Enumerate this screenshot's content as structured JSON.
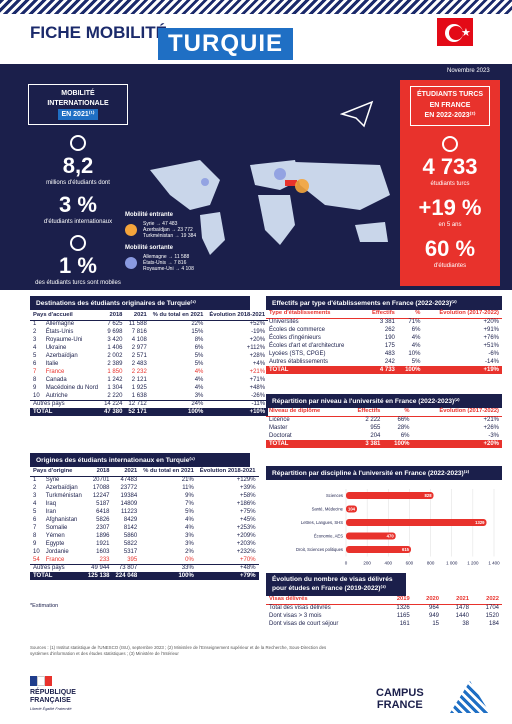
{
  "header": {
    "title": "FICHE MOBILITÉ",
    "country": "TURQUIE",
    "date": "Novembre 2023"
  },
  "left": {
    "box_l1": "MOBILITÉ",
    "box_l2": "INTERNATIONALE",
    "box_l3": "EN 2021⁽¹⁾",
    "n1": "8,2",
    "t1": "millions d'étudiants dont",
    "n2": "3 %",
    "t2": "d'étudiants internationaux",
    "n3": "1 %",
    "t3": "des étudiants turcs sont mobiles"
  },
  "right": {
    "box_l1": "ÉTUDIANTS TURCS",
    "box_l2": "EN FRANCE",
    "box_l3": "EN 2022-2023⁽²⁾",
    "n1": "4 733",
    "t1": "étudiants turcs",
    "n2": "+19 %",
    "t2": "en 5 ans",
    "n3": "60 %",
    "t3": "d'étudiantes"
  },
  "mobility": {
    "in_title": "Mobilité entrante",
    "in": [
      "Syrie → 47 483",
      "Azerbaïdjan → 23 772",
      "Turkménistan → 19 384"
    ],
    "out_title": "Mobilité sortante",
    "out": [
      "Allemagne → 11 588",
      "États-Unis → 7 816",
      "Royaume-Uni → 4 108"
    ]
  },
  "dest": {
    "title": "Destinations des étudiants originaires de Turquie⁽¹⁾",
    "headers": [
      "Pays d'accueil",
      "2018",
      "2021",
      "% du total en 2021",
      "Évolution 2018-2021"
    ],
    "rows": [
      [
        "1",
        "Allemagne",
        "7 625",
        "11 588",
        "22%",
        "+52%"
      ],
      [
        "2",
        "États-Unis",
        "9 698",
        "7 816",
        "15%",
        "-19%"
      ],
      [
        "3",
        "Royaume-Uni",
        "3 420",
        "4 108",
        "8%",
        "+20%"
      ],
      [
        "4",
        "Ukraine",
        "1 406",
        "2 977",
        "6%",
        "+112%"
      ],
      [
        "5",
        "Azerbaïdjan",
        "2 002",
        "2 571",
        "5%",
        "+28%"
      ],
      [
        "6",
        "Italie",
        "2 389",
        "2 483",
        "5%",
        "+4%"
      ],
      [
        "7",
        "France",
        "1 850",
        "2 232",
        "4%",
        "+21%"
      ],
      [
        "8",
        "Canada",
        "1 242",
        "2 121",
        "4%",
        "+71%"
      ],
      [
        "9",
        "Macédoine du Nord",
        "1 304",
        "1 925",
        "4%",
        "+48%"
      ],
      [
        "10",
        "Autriche",
        "2 220",
        "1 638",
        "3%",
        "-26%"
      ]
    ],
    "other": [
      "Autres pays",
      "14 224",
      "12 712",
      "24%",
      "-11%"
    ],
    "total": [
      "TOTAL",
      "47 380",
      "52 171",
      "100%",
      "+10%"
    ]
  },
  "orig": {
    "title": "Origines des étudiants internationaux en Turquie⁽¹⁾",
    "headers": [
      "Pays d'origine",
      "2018",
      "2021",
      "% du total en 2021",
      "Évolution 2018-2021"
    ],
    "rows": [
      [
        "1",
        "Syrie",
        "20701",
        "47483",
        "21%",
        "+129%"
      ],
      [
        "2",
        "Azerbaïdjan",
        "17088",
        "23772",
        "11%",
        "+39%"
      ],
      [
        "3",
        "Turkménistan",
        "12247",
        "19384",
        "9%",
        "+58%"
      ],
      [
        "4",
        "Iraq",
        "5187",
        "14809",
        "7%",
        "+186%"
      ],
      [
        "5",
        "Iran",
        "6418",
        "11223",
        "5%",
        "+75%"
      ],
      [
        "6",
        "Afghanistan",
        "5826",
        "8429",
        "4%",
        "+45%"
      ],
      [
        "7",
        "Somalie",
        "2307",
        "8142",
        "4%",
        "+253%"
      ],
      [
        "8",
        "Yémen",
        "1896",
        "5860",
        "3%",
        "+209%"
      ],
      [
        "9",
        "Egypte",
        "1921",
        "5822",
        "3%",
        "+203%"
      ],
      [
        "10",
        "Jordanie",
        "1603",
        "5317",
        "2%",
        "+232%"
      ],
      [
        "54",
        "France",
        "233",
        "395",
        "0%",
        "+70%"
      ]
    ],
    "other": [
      "Autres pays",
      "49 944",
      "73 807",
      "33%",
      "+48%"
    ],
    "total": [
      "TOTAL",
      "125 138",
      "224 048",
      "100%",
      "+79%"
    ],
    "note": "*Estimation"
  },
  "etab": {
    "title": "Effectifs par type d'établissements en France (2022-2023)⁽²⁾",
    "headers": [
      "Type d'établissements",
      "Effectifs",
      "%",
      "Évolution (2017-2022)"
    ],
    "rows": [
      [
        "Universités",
        "3 381",
        "71%",
        "+20%"
      ],
      [
        "Écoles de commerce",
        "262",
        "6%",
        "+91%"
      ],
      [
        "Écoles d'ingénieurs",
        "190",
        "4%",
        "+76%"
      ],
      [
        "Écoles d'art et d'architecture",
        "175",
        "4%",
        "+51%"
      ],
      [
        "Lycées (STS, CPGE)",
        "483",
        "10%",
        "-6%"
      ],
      [
        "Autres établissements",
        "242",
        "5%",
        "-14%"
      ]
    ],
    "total": [
      "TOTAL",
      "4 733",
      "100%",
      "+19%"
    ]
  },
  "niveau": {
    "title": "Répartition par niveau à l'université en France (2022-2023)⁽²⁾",
    "headers": [
      "Niveau de diplôme",
      "Effectifs",
      "%",
      "Évolution (2017-2022)"
    ],
    "rows": [
      [
        "Licence",
        "2 222",
        "66%",
        "+21%"
      ],
      [
        "Master",
        "955",
        "28%",
        "+26%"
      ],
      [
        "Doctorat",
        "204",
        "6%",
        "-3%"
      ]
    ],
    "total": [
      "TOTAL",
      "3 381",
      "100%",
      "+20%"
    ]
  },
  "discipline": {
    "title": "Répartition par discipline à l'université en France (2022-2023)⁽²⁾"
  },
  "chart_data": {
    "type": "bar",
    "orientation": "horizontal",
    "categories": [
      "Sciences",
      "Santé, Médecine",
      "Lettres, Langues, SHS",
      "Économie, AES",
      "Droit, Sciences politiques"
    ],
    "values": [
      828,
      104,
      1329,
      470,
      615
    ],
    "xlim": [
      0,
      1400
    ],
    "xticks": [
      "0",
      "200",
      "400",
      "600",
      "800",
      "1 000",
      "1 200",
      "1 400"
    ],
    "color": "#e8322c"
  },
  "visas": {
    "title": "Évolution du nombre de visas délivrés pour études en France (2019-2022)⁽³⁾",
    "headers": [
      "Visas délivrés",
      "2019",
      "2020",
      "2021",
      "2022"
    ],
    "rows": [
      [
        "Total des visas délivrés",
        "1326",
        "964",
        "1478",
        "1704"
      ],
      [
        "Dont visas > 3 mois",
        "1165",
        "949",
        "1440",
        "1520"
      ],
      [
        "Dont visas de court séjour",
        "161",
        "15",
        "38",
        "184"
      ]
    ]
  },
  "footer": {
    "sources": "Sources : (1) Institut statistique de l'UNESCO (ISU), septembre 2023 ; (2) Ministère de l'Enseignement supérieur et de la Recherche, Sous-Direction des systèmes d'information et des études statistiques ; (3) Ministère de l'Intérieur",
    "rf_l1": "RÉPUBLIQUE",
    "rf_l2": "FRANÇAISE",
    "rf_motto": "Liberté Égalité Fraternité",
    "cf_l1": "CAMPUS",
    "cf_l2": "FRANCE"
  }
}
